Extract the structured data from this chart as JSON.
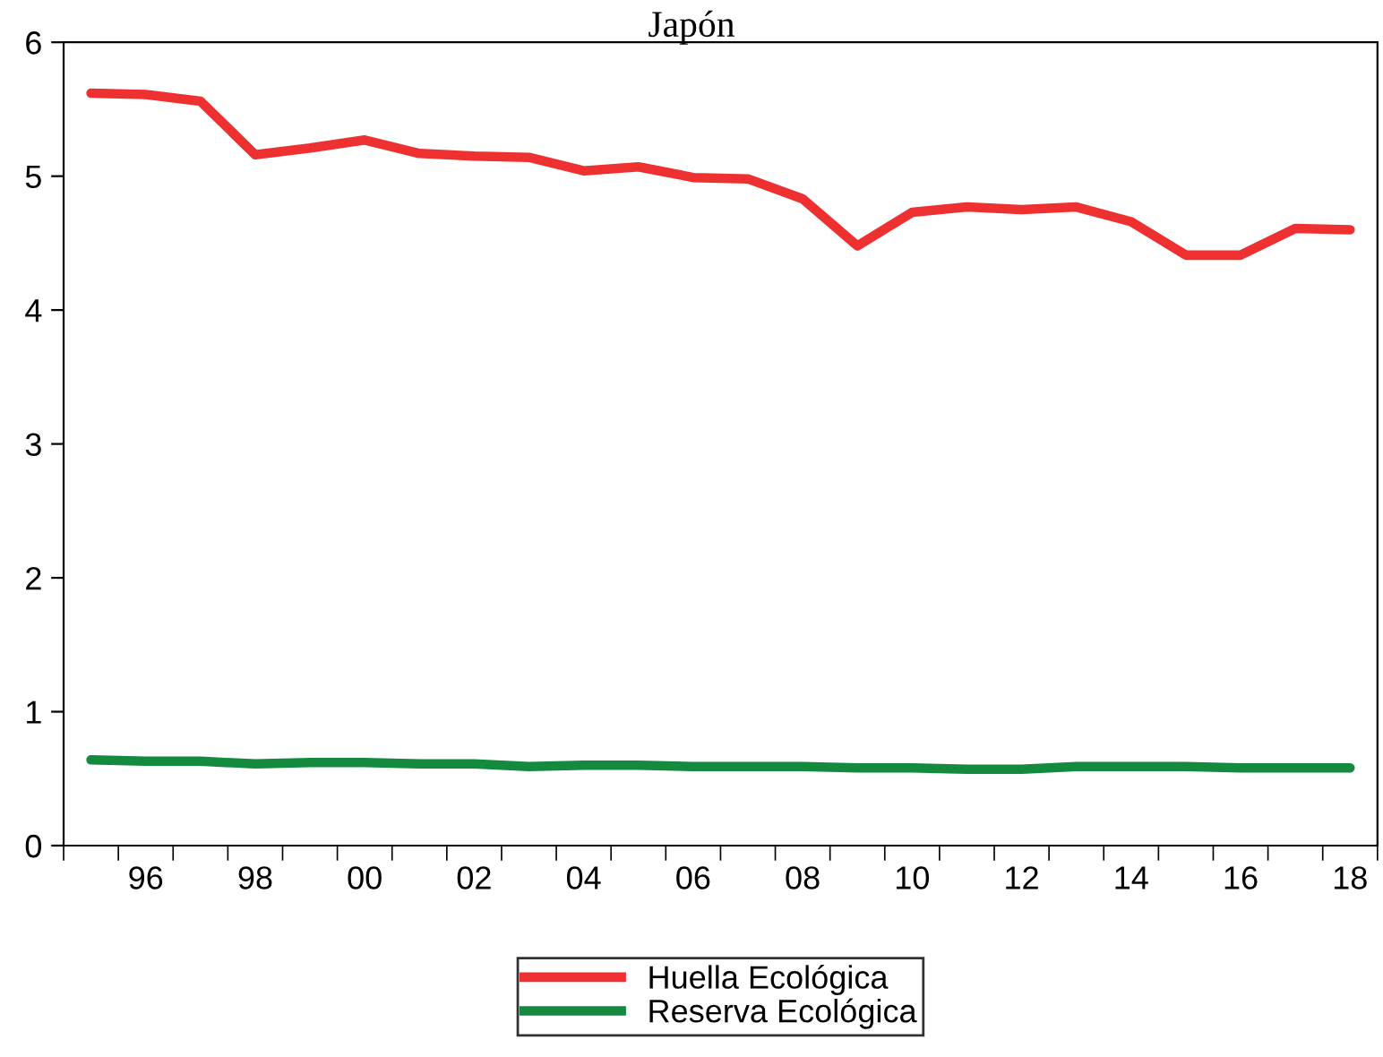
{
  "chart_data": {
    "type": "line",
    "title": "Japón",
    "categories": [
      null,
      "96",
      null,
      "98",
      null,
      "00",
      null,
      "02",
      null,
      "04",
      null,
      "06",
      null,
      "08",
      null,
      "10",
      null,
      "12",
      null,
      "14",
      null,
      "16",
      null,
      "18"
    ],
    "series": [
      {
        "name": "Huella Ecológica",
        "color": "#ee3030",
        "values": [
          5.62,
          5.61,
          5.56,
          5.16,
          5.21,
          5.27,
          5.17,
          5.15,
          5.14,
          5.04,
          5.07,
          4.99,
          4.98,
          4.83,
          4.48,
          4.73,
          4.77,
          4.75,
          4.77,
          4.66,
          4.41,
          4.41,
          4.61,
          4.6
        ]
      },
      {
        "name": "Reserva Ecológica",
        "color": "#138a3e",
        "values": [
          0.64,
          0.63,
          0.63,
          0.61,
          0.62,
          0.62,
          0.61,
          0.61,
          0.59,
          0.6,
          0.6,
          0.59,
          0.59,
          0.59,
          0.58,
          0.58,
          0.57,
          0.57,
          0.59,
          0.59,
          0.59,
          0.58,
          0.58,
          0.58
        ]
      }
    ],
    "ylim": [
      0,
      6
    ],
    "yticks": [
      0,
      1,
      2,
      3,
      4,
      5,
      6
    ],
    "grid": false,
    "legend": "bottom",
    "marker": "none",
    "line_style": "solid"
  }
}
